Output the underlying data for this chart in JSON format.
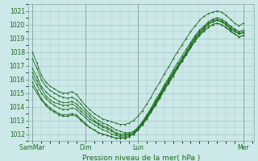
{
  "xlabel": "Pression niveau de la mer( hPa )",
  "ylim": [
    1011.5,
    1021.5
  ],
  "yticks": [
    1012,
    1013,
    1014,
    1015,
    1016,
    1017,
    1018,
    1019,
    1020,
    1021
  ],
  "day_labels": [
    "Sam⁠Mar",
    "Dim",
    "Lun",
    "Mer"
  ],
  "day_positions": [
    0.0,
    0.25,
    0.5,
    1.0
  ],
  "background_color": "#cce8e8",
  "grid_color": "#aacccc",
  "line_color": "#1a6b1a",
  "series": [
    [
      1018.0,
      1017.2,
      1016.3,
      1015.8,
      1015.5,
      1015.3,
      1015.1,
      1015.0,
      1015.0,
      1015.1,
      1014.9,
      1014.5,
      1014.1,
      1013.8,
      1013.5,
      1013.3,
      1013.1,
      1013.0,
      1012.9,
      1012.8,
      1012.7,
      1012.7,
      1012.8,
      1013.0,
      1013.3,
      1013.7,
      1014.2,
      1014.7,
      1015.3,
      1015.8,
      1016.4,
      1016.9,
      1017.5,
      1018.0,
      1018.5,
      1019.0,
      1019.5,
      1019.9,
      1020.3,
      1020.6,
      1020.8,
      1020.9,
      1021.0,
      1020.9,
      1020.7,
      1020.4,
      1020.1,
      1019.9,
      1020.1
    ],
    [
      1017.5,
      1016.8,
      1016.0,
      1015.5,
      1015.2,
      1015.0,
      1014.8,
      1014.7,
      1014.6,
      1014.7,
      1014.5,
      1014.2,
      1013.8,
      1013.5,
      1013.2,
      1013.0,
      1012.8,
      1012.7,
      1012.5,
      1012.3,
      1012.2,
      1012.1,
      1012.1,
      1012.2,
      1012.5,
      1012.9,
      1013.4,
      1013.9,
      1014.5,
      1015.0,
      1015.6,
      1016.1,
      1016.7,
      1017.2,
      1017.7,
      1018.2,
      1018.7,
      1019.2,
      1019.6,
      1019.9,
      1020.2,
      1020.4,
      1020.5,
      1020.4,
      1020.2,
      1019.9,
      1019.7,
      1019.5,
      1019.6
    ],
    [
      1016.8,
      1016.2,
      1015.5,
      1015.1,
      1014.8,
      1014.6,
      1014.4,
      1014.3,
      1014.3,
      1014.4,
      1014.2,
      1013.9,
      1013.6,
      1013.3,
      1013.0,
      1012.8,
      1012.6,
      1012.5,
      1012.3,
      1012.1,
      1012.0,
      1012.0,
      1012.0,
      1012.1,
      1012.4,
      1012.8,
      1013.3,
      1013.8,
      1014.4,
      1014.9,
      1015.5,
      1016.0,
      1016.5,
      1017.0,
      1017.5,
      1018.0,
      1018.6,
      1019.1,
      1019.5,
      1019.8,
      1020.1,
      1020.3,
      1020.4,
      1020.3,
      1020.1,
      1019.8,
      1019.6,
      1019.4,
      1019.5
    ],
    [
      1016.2,
      1015.6,
      1015.0,
      1014.6,
      1014.3,
      1014.1,
      1013.9,
      1013.8,
      1013.8,
      1013.9,
      1013.8,
      1013.5,
      1013.2,
      1012.9,
      1012.7,
      1012.5,
      1012.3,
      1012.2,
      1012.0,
      1011.9,
      1011.8,
      1011.8,
      1011.9,
      1012.0,
      1012.3,
      1012.7,
      1013.2,
      1013.7,
      1014.2,
      1014.8,
      1015.3,
      1015.8,
      1016.4,
      1016.9,
      1017.4,
      1017.9,
      1018.4,
      1018.9,
      1019.3,
      1019.7,
      1020.0,
      1020.2,
      1020.3,
      1020.2,
      1020.0,
      1019.7,
      1019.5,
      1019.3,
      1019.4
    ],
    [
      1015.5,
      1015.0,
      1014.5,
      1014.1,
      1013.8,
      1013.6,
      1013.4,
      1013.3,
      1013.3,
      1013.4,
      1013.3,
      1013.0,
      1012.7,
      1012.5,
      1012.3,
      1012.1,
      1012.0,
      1011.9,
      1011.8,
      1011.7,
      1011.7,
      1011.7,
      1011.8,
      1012.0,
      1012.3,
      1012.7,
      1013.1,
      1013.6,
      1014.1,
      1014.6,
      1015.2,
      1015.7,
      1016.2,
      1016.8,
      1017.3,
      1017.8,
      1018.3,
      1018.8,
      1019.2,
      1019.5,
      1019.8,
      1020.0,
      1020.1,
      1020.0,
      1019.8,
      1019.5,
      1019.3,
      1019.1,
      1019.2
    ],
    [
      1016.5,
      1015.9,
      1015.3,
      1014.8,
      1014.5,
      1014.3,
      1014.2,
      1014.1,
      1014.1,
      1014.2,
      1014.0,
      1013.7,
      1013.4,
      1013.1,
      1012.9,
      1012.7,
      1012.5,
      1012.4,
      1012.2,
      1012.0,
      1011.9,
      1011.9,
      1012.0,
      1012.1,
      1012.4,
      1012.8,
      1013.3,
      1013.8,
      1014.3,
      1014.8,
      1015.4,
      1015.9,
      1016.5,
      1017.0,
      1017.5,
      1018.0,
      1018.5,
      1019.0,
      1019.4,
      1019.7,
      1020.0,
      1020.2,
      1020.3,
      1020.2,
      1020.0,
      1019.7,
      1019.5,
      1019.3,
      1019.4
    ],
    [
      1015.8,
      1015.2,
      1014.6,
      1014.2,
      1013.9,
      1013.7,
      1013.5,
      1013.4,
      1013.4,
      1013.5,
      1013.4,
      1013.1,
      1012.8,
      1012.5,
      1012.3,
      1012.1,
      1012.0,
      1011.9,
      1011.8,
      1011.7,
      1011.7,
      1011.7,
      1011.8,
      1012.0,
      1012.3,
      1012.7,
      1013.1,
      1013.6,
      1014.2,
      1014.7,
      1015.3,
      1015.8,
      1016.3,
      1016.8,
      1017.3,
      1017.8,
      1018.3,
      1018.8,
      1019.2,
      1019.6,
      1019.8,
      1020.0,
      1020.1,
      1020.0,
      1019.8,
      1019.6,
      1019.3,
      1019.1,
      1019.2
    ]
  ]
}
